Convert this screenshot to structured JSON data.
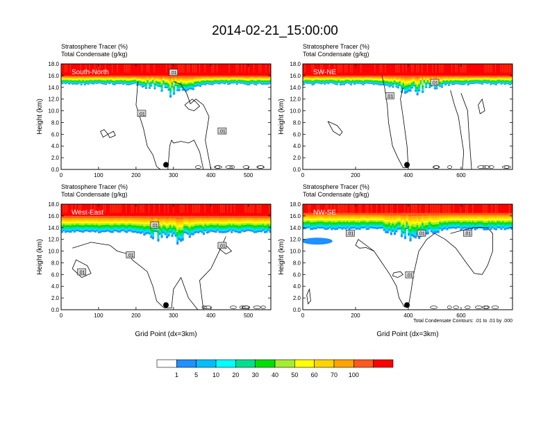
{
  "figure": {
    "title": "2014-02-21_15:00:00",
    "contour_note": "Total Condensate Contours: .01 to .01 by .000",
    "colors": {
      "white": "#ffffff",
      "blue": "#1e90ff",
      "cyan": "#00e5ff",
      "teal": "#00e08f",
      "green": "#00e000",
      "lime": "#a4ed2d",
      "yellow": "#ffff00",
      "gold": "#ffd500",
      "orange": "#ffa500",
      "red_orange": "#ff5a1e",
      "red": "#ff0000"
    }
  },
  "colorbar": {
    "labels": [
      "1",
      "5",
      "10",
      "20",
      "30",
      "40",
      "50",
      "60",
      "70",
      "100"
    ],
    "colors": [
      "#ffffff",
      "#1e90ff",
      "#00bfff",
      "#00ffff",
      "#00e08f",
      "#00e000",
      "#a4ed2d",
      "#ffff00",
      "#ffd500",
      "#ffa500",
      "#ff5a1e",
      "#ff0000"
    ]
  },
  "chart_data": [
    {
      "type": "heatmap",
      "title": "Stratosphere Tracer   (%)",
      "subtitle": "Total Condensate   (g/kg)",
      "panel_label": "South-North",
      "xlabel": "",
      "ylabel": "Height (km)",
      "xlim": [
        0,
        560
      ],
      "ylim": [
        0,
        18
      ],
      "x_ticks": [
        "0",
        "100",
        "200",
        "300",
        "400",
        "500"
      ],
      "y_ticks": [
        "0.0",
        "2.0",
        "4.0",
        "6.0",
        "8.0",
        "10.0",
        "12.0",
        "14.0",
        "16.0",
        "18.0"
      ],
      "tracer_base_km": 14.8,
      "tracer_top_km": 16.0,
      "dot": {
        "x": 280,
        "y": 0.8
      },
      "contour_labels": [
        ".01",
        ".01",
        ".01"
      ]
    },
    {
      "type": "heatmap",
      "title": "Stratosphere Tracer   (%)",
      "subtitle": "Total Condensate   (g/kg)",
      "panel_label": "SW-NE",
      "xlabel": "",
      "ylabel": "Height (km)",
      "xlim": [
        0,
        795
      ],
      "ylim": [
        0,
        18
      ],
      "x_ticks": [
        "0",
        "200",
        "400",
        "600"
      ],
      "y_ticks": [
        "0.0",
        "2.0",
        "4.0",
        "6.0",
        "8.0",
        "10.0",
        "12.0",
        "14.0",
        "16.0",
        "18.0"
      ],
      "tracer_base_km": 14.8,
      "tracer_top_km": 16.0,
      "dot": {
        "x": 395,
        "y": 0.8
      },
      "contour_labels": [
        ".01",
        ".01"
      ]
    },
    {
      "type": "heatmap",
      "title": "Stratosphere Tracer   (%)",
      "subtitle": "Total Condensate   (g/kg)",
      "panel_label": "West-East",
      "xlabel": "Grid Point (dx=3km)",
      "ylabel": "Height (km)",
      "xlim": [
        0,
        560
      ],
      "ylim": [
        0,
        18
      ],
      "x_ticks": [
        "0",
        "100",
        "200",
        "300",
        "400",
        "500"
      ],
      "y_ticks": [
        "0.0",
        "2.0",
        "4.0",
        "6.0",
        "8.0",
        "10.0",
        "12.0",
        "14.0",
        "16.0",
        "18.0"
      ],
      "tracer_base_km": 13.5,
      "tracer_top_km": 16.0,
      "dot": {
        "x": 280,
        "y": 0.8
      },
      "contour_labels": [
        ".01",
        ".01",
        ".01",
        ".01"
      ]
    },
    {
      "type": "heatmap",
      "title": "Stratosphere Tracer   (%)",
      "subtitle": "Total Condensate   (g/kg)",
      "panel_label": "NW-SE",
      "xlabel": "Grid Point (dx=3km)",
      "ylabel": "Height (km)",
      "xlim": [
        0,
        795
      ],
      "ylim": [
        0,
        18
      ],
      "x_ticks": [
        "0",
        "200",
        "400",
        "600"
      ],
      "y_ticks": [
        "0.0",
        "2.0",
        "4.0",
        "6.0",
        "8.0",
        "10.0",
        "12.0",
        "14.0",
        "16.0",
        "18.0"
      ],
      "tracer_base_km": 14.0,
      "tracer_top_km": 16.5,
      "dot": {
        "x": 395,
        "y": 0.8
      },
      "contour_labels": [
        ".01",
        ".01",
        ".01",
        ".01"
      ]
    }
  ]
}
